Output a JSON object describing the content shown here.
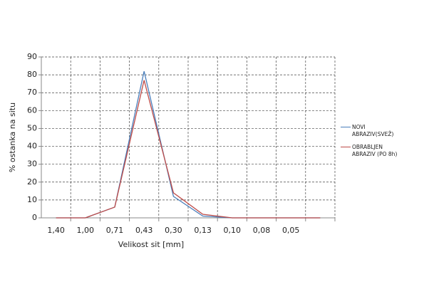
{
  "chart_data": {
    "type": "line",
    "x_label": "Velikost sit [mm]",
    "y_label": "% ostanka na situ",
    "categories": [
      "1,40",
      "1,00",
      "0,71",
      "0,43",
      "0,30",
      "0,13",
      "0,10",
      "0,08",
      "0,05",
      null
    ],
    "series": [
      {
        "name": "NOVI ABRAZIV(SVEŽ)",
        "color": "#4a7ebb",
        "values": [
          0,
          0,
          6,
          82,
          12,
          1,
          0,
          0,
          0,
          0
        ]
      },
      {
        "name": "OBRABLJEN ABRAZIV (PO 8h)",
        "color": "#be4b48",
        "values": [
          0,
          0,
          6,
          77,
          14,
          2,
          0,
          0,
          0,
          0
        ]
      }
    ],
    "ylim": [
      0,
      90
    ],
    "yticks": [
      0,
      10,
      20,
      30,
      40,
      50,
      60,
      70,
      80,
      90
    ],
    "grid": true
  }
}
